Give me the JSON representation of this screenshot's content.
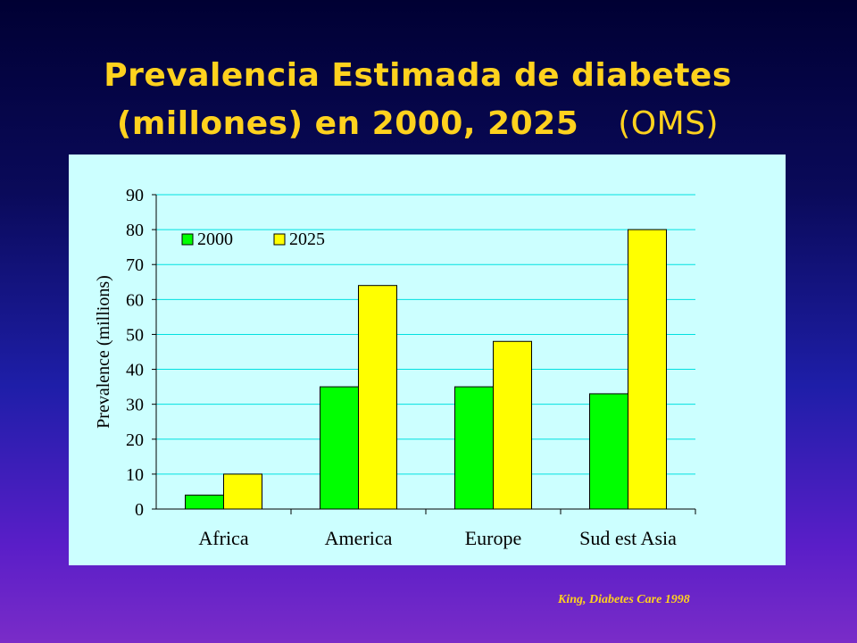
{
  "slide": {
    "title_line1": "Prevalencia Estimada de diabetes",
    "title_line2": "(millones) en  2000, 2025",
    "title_suffix": "(OMS)",
    "source": "King, Diabetes Care 1998"
  },
  "colors": {
    "series_2000": "#00ff00",
    "series_2025": "#ffff00",
    "gridline": "#00e0e0",
    "panel": "#ccffff",
    "title": "#ffd21e"
  },
  "chart_data": {
    "type": "bar",
    "title": "",
    "xlabel": "",
    "ylabel": "Prevalence (millions)",
    "ylim": [
      0,
      90
    ],
    "yticks": [
      0,
      10,
      20,
      30,
      40,
      50,
      60,
      70,
      80,
      90
    ],
    "grid": true,
    "legend_position": "top-left",
    "categories": [
      "Africa",
      "America",
      "Europe",
      "Sud est Asia"
    ],
    "series": [
      {
        "name": "2000",
        "values": [
          4,
          35,
          35,
          33
        ]
      },
      {
        "name": "2025",
        "values": [
          10,
          64,
          48,
          80
        ]
      }
    ]
  }
}
